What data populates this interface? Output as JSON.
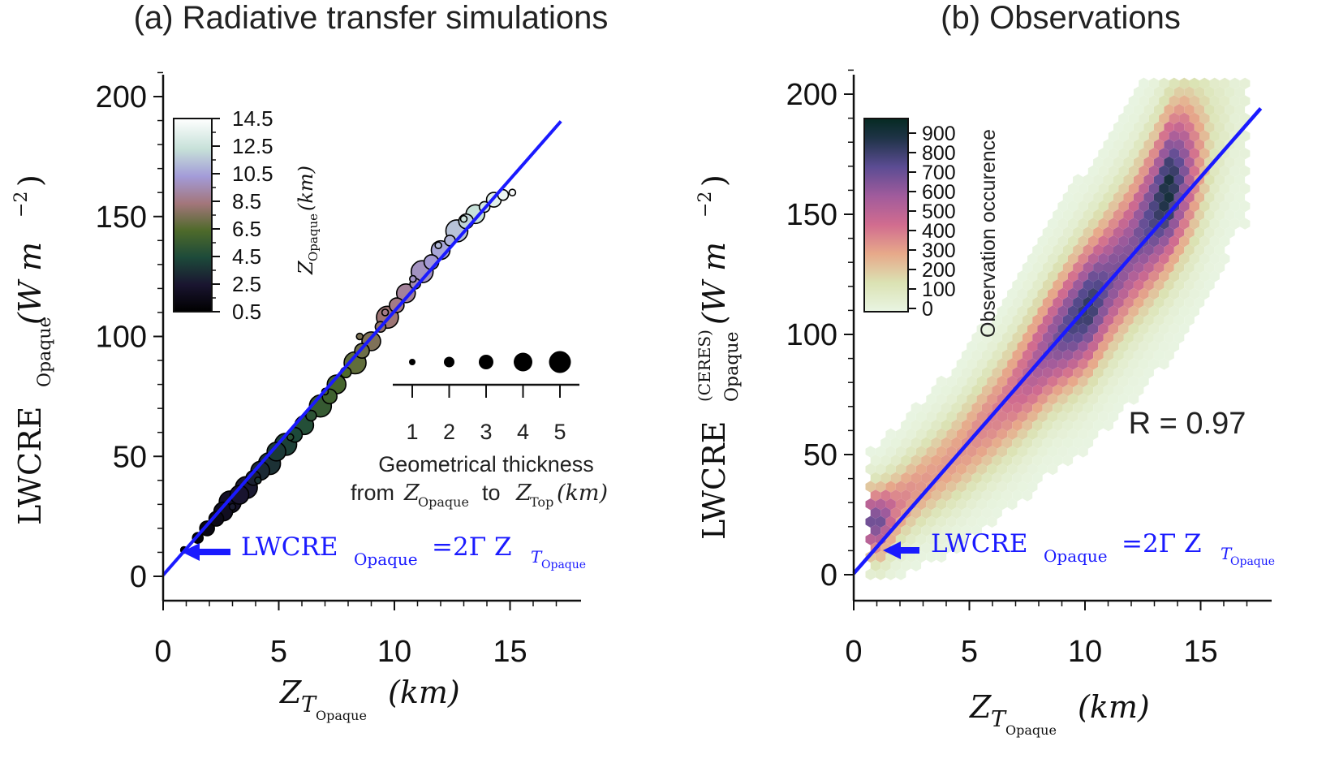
{
  "chart_data": [
    {
      "type": "scatter",
      "title": "(a) Radiative transfer simulations",
      "xlabel": {
        "base": "Z",
        "sub": "T",
        "subsub": "Opaque",
        "unit": "(km)"
      },
      "ylabel": {
        "base": "LWCRE",
        "sub": "Opaque",
        "unit": "(W m",
        "exp": "−2",
        "close": ")"
      },
      "xlim": [
        0,
        18
      ],
      "ylim": [
        0,
        210
      ],
      "xticks": [
        "0",
        "5",
        "10",
        "15"
      ],
      "yticks": [
        "0",
        "50",
        "100",
        "150",
        "200"
      ],
      "line": {
        "label": "LWCRE_Opaque = 2Γ Z_T_Opaque",
        "slope": 11.0,
        "intercept": 0.5,
        "x_range": [
          0,
          17.2
        ],
        "color": "#1a1aff"
      },
      "annotation": {
        "lhs": "LWCRE",
        "lhs_sub": "Opaque",
        "rhs": "=2Γ Z",
        "rhs_sub": "T",
        "rhs_subsub": "Opaque"
      },
      "colorbar": {
        "label": "Z",
        "label_sub": "Opaque",
        "label_unit": "(km)",
        "ticks": [
          "14.5",
          "12.5",
          "10.5",
          "8.5",
          "6.5",
          "4.5",
          "2.5",
          "0.5"
        ],
        "range": [
          0.5,
          14.5
        ]
      },
      "size_legend": {
        "title_line1": "Geometrical thickness",
        "title_line2_parts": [
          "from ",
          "Z",
          "Opaque",
          " to ",
          "Z",
          "Top",
          " (km)"
        ],
        "values": [
          "1",
          "2",
          "3",
          "4",
          "5"
        ]
      },
      "points": [
        {
          "x": 0.9,
          "y": 11,
          "z": 0.5,
          "t": 1
        },
        {
          "x": 1.5,
          "y": 16,
          "z": 0.8,
          "t": 2
        },
        {
          "x": 1.9,
          "y": 20,
          "z": 1.2,
          "t": 3
        },
        {
          "x": 2.3,
          "y": 24,
          "z": 1.4,
          "t": 3
        },
        {
          "x": 2.6,
          "y": 27,
          "z": 1.8,
          "t": 4
        },
        {
          "x": 2.9,
          "y": 31,
          "z": 2.1,
          "t": 5
        },
        {
          "x": 3.3,
          "y": 34,
          "z": 2.4,
          "t": 4
        },
        {
          "x": 3.6,
          "y": 37,
          "z": 2.6,
          "t": 5
        },
        {
          "x": 3.9,
          "y": 41,
          "z": 2.9,
          "t": 3
        },
        {
          "x": 4.2,
          "y": 44,
          "z": 3.2,
          "t": 4
        },
        {
          "x": 4.6,
          "y": 47,
          "z": 3.5,
          "t": 5
        },
        {
          "x": 4.9,
          "y": 52,
          "z": 3.8,
          "t": 4
        },
        {
          "x": 5.3,
          "y": 55,
          "z": 4.1,
          "t": 5
        },
        {
          "x": 5.7,
          "y": 59,
          "z": 4.4,
          "t": 3
        },
        {
          "x": 6.1,
          "y": 63,
          "z": 4.7,
          "t": 4
        },
        {
          "x": 6.4,
          "y": 67,
          "z": 5.0,
          "t": 2
        },
        {
          "x": 6.8,
          "y": 71,
          "z": 5.4,
          "t": 5
        },
        {
          "x": 7.2,
          "y": 75,
          "z": 5.8,
          "t": 3
        },
        {
          "x": 7.5,
          "y": 80,
          "z": 6.0,
          "t": 4
        },
        {
          "x": 7.9,
          "y": 85,
          "z": 6.4,
          "t": 2
        },
        {
          "x": 8.3,
          "y": 89,
          "z": 6.8,
          "t": 5
        },
        {
          "x": 8.6,
          "y": 94,
          "z": 7.1,
          "t": 3
        },
        {
          "x": 9.0,
          "y": 98,
          "z": 7.5,
          "t": 4
        },
        {
          "x": 9.4,
          "y": 104,
          "z": 7.9,
          "t": 2
        },
        {
          "x": 9.7,
          "y": 108,
          "z": 8.2,
          "t": 5
        },
        {
          "x": 10.1,
          "y": 113,
          "z": 8.6,
          "t": 3
        },
        {
          "x": 10.5,
          "y": 118,
          "z": 9.0,
          "t": 4
        },
        {
          "x": 10.9,
          "y": 122,
          "z": 9.4,
          "t": 2
        },
        {
          "x": 11.2,
          "y": 127,
          "z": 9.8,
          "t": 5
        },
        {
          "x": 11.6,
          "y": 131,
          "z": 10.2,
          "t": 3
        },
        {
          "x": 12.0,
          "y": 136,
          "z": 10.6,
          "t": 4
        },
        {
          "x": 12.4,
          "y": 140,
          "z": 11.0,
          "t": 2
        },
        {
          "x": 12.7,
          "y": 144,
          "z": 11.4,
          "t": 5
        },
        {
          "x": 13.1,
          "y": 148,
          "z": 11.9,
          "t": 3
        },
        {
          "x": 13.5,
          "y": 151,
          "z": 12.3,
          "t": 4
        },
        {
          "x": 13.9,
          "y": 154,
          "z": 12.8,
          "t": 2
        },
        {
          "x": 14.3,
          "y": 157,
          "z": 13.3,
          "t": 3
        },
        {
          "x": 14.7,
          "y": 159,
          "z": 13.8,
          "t": 2
        },
        {
          "x": 15.1,
          "y": 160,
          "z": 14.3,
          "t": 1
        },
        {
          "x": 8.5,
          "y": 100,
          "z": 7.4,
          "t": 1
        },
        {
          "x": 9.6,
          "y": 110,
          "z": 8.6,
          "t": 1
        },
        {
          "x": 10.8,
          "y": 124,
          "z": 9.9,
          "t": 1
        },
        {
          "x": 11.9,
          "y": 138,
          "z": 11.2,
          "t": 1
        },
        {
          "x": 13.0,
          "y": 149,
          "z": 12.5,
          "t": 1
        },
        {
          "x": 7.0,
          "y": 77,
          "z": 6.2,
          "t": 1
        },
        {
          "x": 5.5,
          "y": 58,
          "z": 4.9,
          "t": 1
        },
        {
          "x": 4.1,
          "y": 40,
          "z": 3.6,
          "t": 1
        },
        {
          "x": 3.0,
          "y": 29,
          "z": 2.7,
          "t": 1
        }
      ]
    },
    {
      "type": "heatmap",
      "title": "(b) Observations",
      "xlabel": {
        "base": "Z",
        "sub": "T",
        "subsub": "Opaque",
        "unit": "(km)"
      },
      "ylabel": {
        "base": "LWCRE",
        "sub": "Opaque",
        "sup": "(CERES)",
        "unit": "(W m",
        "exp": "−2",
        "close": ")"
      },
      "xlim": [
        0,
        18
      ],
      "ylim": [
        0,
        210
      ],
      "xticks": [
        "0",
        "5",
        "10",
        "15"
      ],
      "yticks": [
        "0",
        "50",
        "100",
        "150",
        "200"
      ],
      "line": {
        "label": "LWCRE_Opaque = 2Γ Z_T_Opaque",
        "slope": 11.0,
        "intercept": 0.5,
        "x_range": [
          0,
          17.6
        ],
        "color": "#1a1aff"
      },
      "annotation": {
        "lhs": "LWCRE",
        "lhs_sub": "Opaque",
        "rhs": "=2Γ Z",
        "rhs_sub": "T",
        "rhs_subsub": "Opaque"
      },
      "correlation_label": "R = 0.97",
      "colorbar": {
        "label": "Observation occurence",
        "ticks": [
          "900",
          "800",
          "700",
          "600",
          "500",
          "400",
          "300",
          "200",
          "100",
          "0"
        ],
        "range": [
          0,
          1000
        ]
      },
      "ridge": [
        {
          "x": 1.2,
          "y": 22,
          "peak": 700
        },
        {
          "x": 1.8,
          "y": 28,
          "peak": 420
        },
        {
          "x": 2.6,
          "y": 35,
          "peak": 350
        },
        {
          "x": 3.5,
          "y": 42,
          "peak": 330
        },
        {
          "x": 4.5,
          "y": 50,
          "peak": 340
        },
        {
          "x": 5.5,
          "y": 60,
          "peak": 380
        },
        {
          "x": 6.5,
          "y": 70,
          "peak": 420
        },
        {
          "x": 7.5,
          "y": 82,
          "peak": 520
        },
        {
          "x": 8.5,
          "y": 95,
          "peak": 650
        },
        {
          "x": 9.5,
          "y": 105,
          "peak": 800
        },
        {
          "x": 10.2,
          "y": 112,
          "peak": 860
        },
        {
          "x": 11.0,
          "y": 122,
          "peak": 700
        },
        {
          "x": 12.0,
          "y": 135,
          "peak": 650
        },
        {
          "x": 13.0,
          "y": 150,
          "peak": 800
        },
        {
          "x": 13.6,
          "y": 160,
          "peak": 950
        },
        {
          "x": 14.2,
          "y": 167,
          "peak": 720
        },
        {
          "x": 14.8,
          "y": 172,
          "peak": 400
        },
        {
          "x": 15.5,
          "y": 180,
          "peak": 140
        },
        {
          "x": 16.5,
          "y": 195,
          "peak": 40
        }
      ]
    }
  ]
}
